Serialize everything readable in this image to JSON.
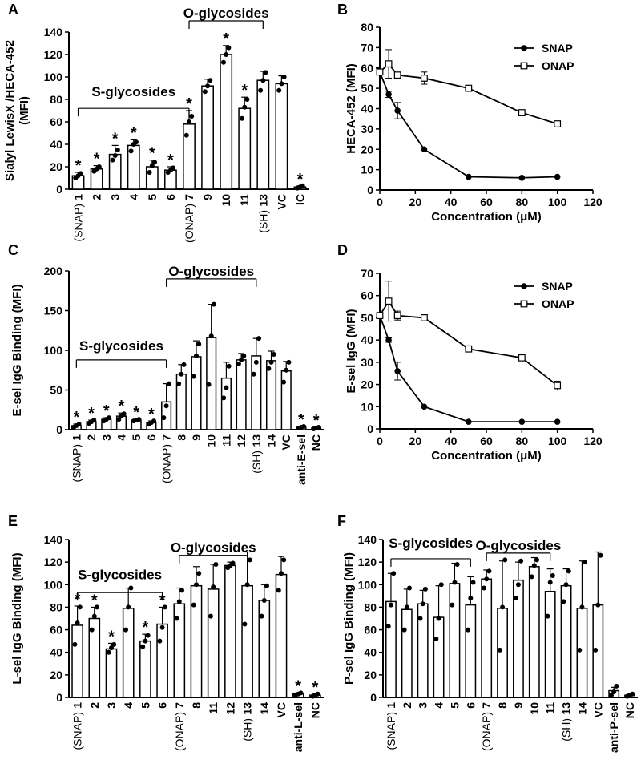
{
  "chart_data": [
    {
      "panel": "A",
      "type": "bar",
      "ylabel": "Sialyl LewisX /HECA-452\n(MFI)",
      "ylim": [
        0,
        140
      ],
      "yticks": [
        0,
        20,
        40,
        60,
        80,
        100,
        120,
        140
      ],
      "categories": [
        "1",
        "2",
        "3",
        "4",
        "5",
        "6",
        "7",
        "9",
        "10",
        "11",
        "13",
        "VC",
        "IC"
      ],
      "sublabels": {
        "1": "(SNAP)",
        "7": "(ONAP)",
        "13": "(SH)"
      },
      "values": [
        12,
        18,
        31,
        39,
        20,
        17,
        58,
        92,
        120,
        72,
        97,
        94,
        2
      ],
      "errors": [
        3,
        3,
        8,
        5,
        6,
        3,
        12,
        6,
        8,
        10,
        8,
        7,
        1
      ],
      "points": [
        [
          10,
          12,
          14
        ],
        [
          16,
          18,
          20
        ],
        [
          26,
          30,
          35
        ],
        [
          34,
          40,
          42
        ],
        [
          15,
          21,
          24
        ],
        [
          15,
          17,
          19
        ],
        [
          48,
          60,
          65
        ],
        [
          87,
          92,
          97
        ],
        [
          113,
          120,
          126
        ],
        [
          63,
          73,
          80
        ],
        [
          88,
          97,
          104
        ],
        [
          88,
          94,
          100
        ],
        [
          1,
          2,
          3
        ]
      ],
      "stars": [
        true,
        true,
        true,
        true,
        true,
        true,
        true,
        false,
        true,
        true,
        false,
        false,
        true
      ],
      "brackets": [
        {
          "label": "S-glycosides",
          "from": 0,
          "to": 6,
          "y": 72,
          "text_y": 80
        },
        {
          "label": "O-glycosides",
          "from": 6,
          "to": 10,
          "y": 150,
          "text_y": 150
        }
      ]
    },
    {
      "panel": "B",
      "type": "line",
      "xlabel": "Concentration (μM)",
      "ylabel": "HECA-452 (MFI)",
      "xlim": [
        0,
        120
      ],
      "ylim": [
        0,
        80
      ],
      "xticks": [
        0,
        20,
        40,
        60,
        80,
        100,
        120
      ],
      "yticks": [
        0,
        10,
        20,
        30,
        40,
        50,
        60,
        70,
        80
      ],
      "series": [
        {
          "name": "SNAP",
          "marker": "filled-circle",
          "x": [
            0,
            5,
            10,
            25,
            50,
            80,
            100
          ],
          "y": [
            58,
            47,
            39,
            20,
            6.5,
            6,
            6.5
          ],
          "err": [
            1,
            1.5,
            4,
            0.5,
            0.3,
            0.3,
            0.3
          ]
        },
        {
          "name": "ONAP",
          "marker": "open-square",
          "x": [
            0,
            5,
            10,
            25,
            50,
            80,
            100
          ],
          "y": [
            58,
            62,
            56.5,
            55,
            50,
            38,
            32.5
          ],
          "err": [
            1,
            7,
            1,
            3,
            0.5,
            0.5,
            0.8
          ]
        }
      ]
    },
    {
      "panel": "C",
      "type": "bar",
      "ylabel": "E-sel IgG Binding (MFI)",
      "ylim": [
        0,
        200
      ],
      "yticks": [
        0,
        50,
        100,
        150,
        200
      ],
      "categories": [
        "1",
        "2",
        "3",
        "4",
        "5",
        "6",
        "7",
        "8",
        "9",
        "10",
        "11",
        "12",
        "13",
        "14",
        "VC",
        "anti-E-sel",
        "NC"
      ],
      "sublabels": {
        "1": "(SNAP)",
        "7": "(ONAP)",
        "13": "(SH)"
      },
      "values": [
        5,
        10,
        13,
        17,
        12,
        9,
        35,
        70,
        92,
        116,
        65,
        88,
        93,
        87,
        74,
        3,
        2
      ],
      "errors": [
        2,
        2,
        2,
        4,
        1,
        2,
        23,
        12,
        20,
        42,
        20,
        8,
        22,
        12,
        12,
        1,
        1
      ],
      "points": [
        [
          3,
          5,
          7
        ],
        [
          8,
          10,
          12
        ],
        [
          11,
          13,
          15
        ],
        [
          13,
          17,
          20
        ],
        [
          11,
          12,
          13
        ],
        [
          7,
          9,
          11
        ],
        [
          15,
          30,
          58
        ],
        [
          58,
          70,
          82
        ],
        [
          67,
          93,
          108
        ],
        [
          57,
          118,
          158
        ],
        [
          40,
          53,
          80
        ],
        [
          83,
          88,
          93
        ],
        [
          70,
          85,
          115
        ],
        [
          77,
          85,
          95
        ],
        [
          60,
          75,
          85
        ],
        [
          2,
          3,
          4
        ],
        [
          1,
          2,
          3
        ]
      ],
      "stars": [
        true,
        true,
        true,
        true,
        true,
        true,
        false,
        false,
        false,
        false,
        false,
        false,
        false,
        false,
        false,
        true,
        true
      ],
      "brackets": [
        {
          "label": "S-glycosides",
          "from": 0,
          "to": 6,
          "y": 88,
          "text_y": 96
        },
        {
          "label": "O-glycosides",
          "from": 6,
          "to": 12,
          "y": 190,
          "text_y": 190
        }
      ]
    },
    {
      "panel": "D",
      "type": "line",
      "xlabel": "Concentration (μM)",
      "ylabel": "E-sel IgG (MFI)",
      "xlim": [
        0,
        120
      ],
      "ylim": [
        0,
        70
      ],
      "xticks": [
        0,
        20,
        40,
        60,
        80,
        100,
        120
      ],
      "yticks": [
        0,
        10,
        20,
        30,
        40,
        50,
        60,
        70
      ],
      "series": [
        {
          "name": "SNAP",
          "marker": "filled-circle",
          "x": [
            0,
            5,
            10,
            25,
            50,
            80,
            100
          ],
          "y": [
            51,
            40,
            26,
            10,
            3.2,
            3.2,
            3.2
          ],
          "err": [
            1,
            1,
            4,
            0.5,
            0.3,
            0.3,
            0.3
          ]
        },
        {
          "name": "ONAP",
          "marker": "open-square",
          "x": [
            0,
            5,
            10,
            25,
            50,
            80,
            100
          ],
          "y": [
            51,
            57.5,
            51,
            50,
            36,
            32,
            19.5
          ],
          "err": [
            1,
            9,
            2,
            0.5,
            1,
            0.5,
            2
          ]
        }
      ]
    },
    {
      "panel": "E",
      "type": "bar",
      "ylabel": "L-sel IgG Binding (MFI)",
      "ylim": [
        0,
        140
      ],
      "yticks": [
        0,
        20,
        40,
        60,
        80,
        100,
        120,
        140
      ],
      "categories": [
        "1",
        "2",
        "3",
        "4",
        "5",
        "6",
        "7",
        "8",
        "11",
        "12",
        "13",
        "14",
        "VC",
        "anti-L-sel",
        "NC"
      ],
      "sublabels": {
        "1": "(SNAP)",
        "7": "(ONAP)",
        "13": "(SH)"
      },
      "values": [
        64,
        70,
        43,
        79,
        50,
        65,
        83,
        99,
        96,
        117,
        99,
        86,
        109,
        3,
        2
      ],
      "errors": [
        17,
        10,
        5,
        18,
        6,
        15,
        14,
        17,
        22,
        3,
        30,
        14,
        16,
        1,
        1
      ],
      "points": [
        [
          47,
          66,
          80
        ],
        [
          60,
          72,
          80
        ],
        [
          40,
          44,
          47
        ],
        [
          60,
          80,
          97
        ],
        [
          45,
          50,
          55
        ],
        [
          50,
          62,
          80
        ],
        [
          70,
          85,
          95
        ],
        [
          82,
          100,
          110
        ],
        [
          72,
          98,
          118
        ],
        [
          115,
          117,
          119
        ],
        [
          65,
          100,
          122
        ],
        [
          72,
          86,
          99
        ],
        [
          95,
          110,
          122
        ],
        [
          2,
          3,
          4
        ],
        [
          1,
          2,
          3
        ]
      ],
      "stars": [
        true,
        true,
        true,
        false,
        true,
        true,
        false,
        false,
        false,
        false,
        false,
        false,
        false,
        true,
        true
      ],
      "brackets": [
        {
          "label": "S-glycosides",
          "from": 0,
          "to": 5,
          "y": 93,
          "text_y": 102
        },
        {
          "label": "O-glycosides",
          "from": 6,
          "to": 10,
          "y": 126,
          "text_y": 126
        }
      ]
    },
    {
      "panel": "F",
      "type": "bar",
      "ylabel": "P-sel IgG Binding (MFI)",
      "ylim": [
        0,
        140
      ],
      "yticks": [
        0,
        20,
        40,
        60,
        80,
        100,
        120,
        140
      ],
      "categories": [
        "1",
        "2",
        "3",
        "4",
        "5",
        "6",
        "7",
        "8",
        "9",
        "10",
        "11",
        "13",
        "14",
        "VC",
        "anti-P-sel",
        "NC"
      ],
      "sublabels": {
        "1": "(SNAP)",
        "7": "(ONAP)",
        "13": "(SH)"
      },
      "values": [
        85,
        78,
        83,
        71,
        101,
        82,
        105,
        79,
        104,
        116,
        94,
        99,
        79,
        82,
        6,
        2
      ],
      "errors": [
        25,
        18,
        12,
        28,
        18,
        25,
        8,
        42,
        16,
        8,
        20,
        15,
        42,
        47,
        3,
        1
      ],
      "points": [
        [
          63,
          82,
          110
        ],
        [
          60,
          80,
          97
        ],
        [
          70,
          83,
          96
        ],
        [
          52,
          70,
          100
        ],
        [
          82,
          102,
          118
        ],
        [
          60,
          88,
          102
        ],
        [
          97,
          105,
          112
        ],
        [
          42,
          80,
          122
        ],
        [
          88,
          100,
          121
        ],
        [
          107,
          117,
          122
        ],
        [
          72,
          102,
          108
        ],
        [
          85,
          100,
          112
        ],
        [
          42,
          80,
          120
        ],
        [
          42,
          82,
          126
        ],
        [
          2,
          5,
          10
        ],
        [
          1,
          2,
          3
        ]
      ],
      "stars": [
        false,
        false,
        false,
        false,
        false,
        false,
        false,
        false,
        false,
        false,
        false,
        false,
        false,
        false,
        false,
        false
      ],
      "brackets": [
        {
          "label": "S-glycosides",
          "from": 0,
          "to": 5,
          "y": 123,
          "text_y": 130
        },
        {
          "label": "O-glycosides",
          "from": 6,
          "to": 10,
          "y": 128,
          "text_y": 128
        }
      ]
    }
  ]
}
